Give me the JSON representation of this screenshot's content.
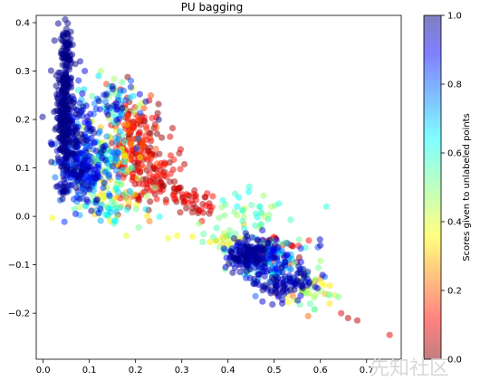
{
  "chart_data": {
    "type": "scatter",
    "title": "PU bagging",
    "xlabel": "",
    "ylabel": "",
    "xlim": [
      -0.015,
      0.775
    ],
    "ylim": [
      -0.295,
      0.415
    ],
    "x_ticks": [
      0.0,
      0.1,
      0.2,
      0.3,
      0.4,
      0.5,
      0.6,
      0.7
    ],
    "x_tick_labels": [
      "0.0",
      "0.1",
      "0.2",
      "0.3",
      "0.4",
      "0.5",
      "0.6",
      "0.7"
    ],
    "y_ticks": [
      0.4,
      0.3,
      0.2,
      0.1,
      0.0,
      -0.1,
      -0.2
    ],
    "y_tick_labels": [
      "0.4",
      "0.3",
      "0.2",
      "0.1",
      "0.0",
      "−0.1",
      "−0.2"
    ],
    "grid": false,
    "colormap": "jet",
    "marker_alpha": 0.5,
    "colorbar": {
      "label": "Scores given to unlabeled points",
      "range": [
        0.0,
        1.0
      ],
      "ticks": [
        0.0,
        0.2,
        0.4,
        0.6,
        0.8,
        1.0
      ],
      "tick_labels": [
        "0.0",
        "0.2",
        "0.4",
        "0.6",
        "0.8",
        "1.0"
      ]
    },
    "clusters_description": "Approximate density regions used to reproduce the point cloud",
    "regions": [
      {
        "cx": 0.045,
        "cy": 0.22,
        "sx": 0.008,
        "sy": 0.07,
        "n": 260,
        "score": [
          0.0,
          0.04
        ]
      },
      {
        "cx": 0.05,
        "cy": 0.33,
        "sx": 0.006,
        "sy": 0.04,
        "n": 60,
        "score": [
          0.0,
          0.03
        ]
      },
      {
        "cx": 0.07,
        "cy": 0.17,
        "sx": 0.025,
        "sy": 0.035,
        "n": 120,
        "score": [
          0.0,
          0.2
        ]
      },
      {
        "cx": 0.08,
        "cy": 0.09,
        "sx": 0.03,
        "sy": 0.03,
        "n": 200,
        "score": [
          0.0,
          0.3
        ]
      },
      {
        "cx": 0.13,
        "cy": 0.12,
        "sx": 0.035,
        "sy": 0.04,
        "n": 150,
        "score": [
          0.2,
          0.75
        ]
      },
      {
        "cx": 0.2,
        "cy": 0.15,
        "sx": 0.03,
        "sy": 0.05,
        "n": 170,
        "score": [
          0.8,
          1.0
        ]
      },
      {
        "cx": 0.16,
        "cy": 0.24,
        "sx": 0.03,
        "sy": 0.025,
        "n": 70,
        "score": [
          0.0,
          0.6
        ]
      },
      {
        "cx": 0.24,
        "cy": 0.08,
        "sx": 0.03,
        "sy": 0.03,
        "n": 90,
        "score": [
          0.85,
          1.0
        ]
      },
      {
        "cx": 0.33,
        "cy": 0.03,
        "sx": 0.025,
        "sy": 0.015,
        "n": 45,
        "score": [
          0.85,
          1.0
        ]
      },
      {
        "cx": 0.14,
        "cy": 0.02,
        "sx": 0.04,
        "sy": 0.02,
        "n": 60,
        "score": [
          0.3,
          0.7
        ]
      },
      {
        "cx": 0.45,
        "cy": -0.08,
        "sx": 0.025,
        "sy": 0.018,
        "n": 170,
        "score": [
          0.0,
          0.12
        ]
      },
      {
        "cx": 0.5,
        "cy": -0.1,
        "sx": 0.04,
        "sy": 0.03,
        "n": 150,
        "score": [
          0.0,
          0.5
        ]
      },
      {
        "cx": 0.52,
        "cy": -0.14,
        "sx": 0.03,
        "sy": 0.015,
        "n": 80,
        "score": [
          0.0,
          0.1
        ]
      },
      {
        "cx": 0.46,
        "cy": 0.0,
        "sx": 0.04,
        "sy": 0.025,
        "n": 40,
        "score": [
          0.38,
          0.55
        ]
      },
      {
        "cx": 0.57,
        "cy": -0.15,
        "sx": 0.03,
        "sy": 0.02,
        "n": 40,
        "score": [
          0.45,
          0.8
        ]
      },
      {
        "cx": 0.5,
        "cy": -0.07,
        "sx": 0.03,
        "sy": 0.02,
        "n": 40,
        "score": [
          0.85,
          1.0
        ]
      },
      {
        "cx": 0.4,
        "cy": -0.05,
        "sx": 0.03,
        "sy": 0.02,
        "n": 30,
        "score": [
          0.45,
          0.7
        ]
      }
    ],
    "extra_points": [
      {
        "x": 0.645,
        "y": -0.2,
        "score": 0.9
      },
      {
        "x": 0.66,
        "y": -0.21,
        "score": 0.95
      },
      {
        "x": 0.68,
        "y": -0.215,
        "score": 0.95
      },
      {
        "x": 0.75,
        "y": -0.245,
        "score": 0.9
      },
      {
        "x": 0.61,
        "y": -0.16,
        "score": 0.7
      },
      {
        "x": 0.62,
        "y": -0.18,
        "score": 0.65
      },
      {
        "x": 0.6,
        "y": -0.06,
        "score": 0.05
      },
      {
        "x": 0.35,
        "y": 0.04,
        "score": 0.95
      },
      {
        "x": 0.36,
        "y": 0.02,
        "score": 0.9
      },
      {
        "x": 0.27,
        "y": -0.045,
        "score": 0.6
      },
      {
        "x": 0.29,
        "y": -0.04,
        "score": 0.62
      },
      {
        "x": 0.18,
        "y": -0.04,
        "score": 0.6
      },
      {
        "x": 0.23,
        "y": -0.01,
        "score": 0.75
      },
      {
        "x": 0.25,
        "y": 0.2,
        "score": 0.0
      },
      {
        "x": 0.12,
        "y": 0.29,
        "score": 0.35
      },
      {
        "x": 0.19,
        "y": 0.28,
        "score": 0.2
      },
      {
        "x": 0.09,
        "y": 0.3,
        "score": 0.1
      },
      {
        "x": 0.08,
        "y": 0.32,
        "score": 0.05
      }
    ]
  },
  "watermark": {
    "text": "先知社区"
  }
}
